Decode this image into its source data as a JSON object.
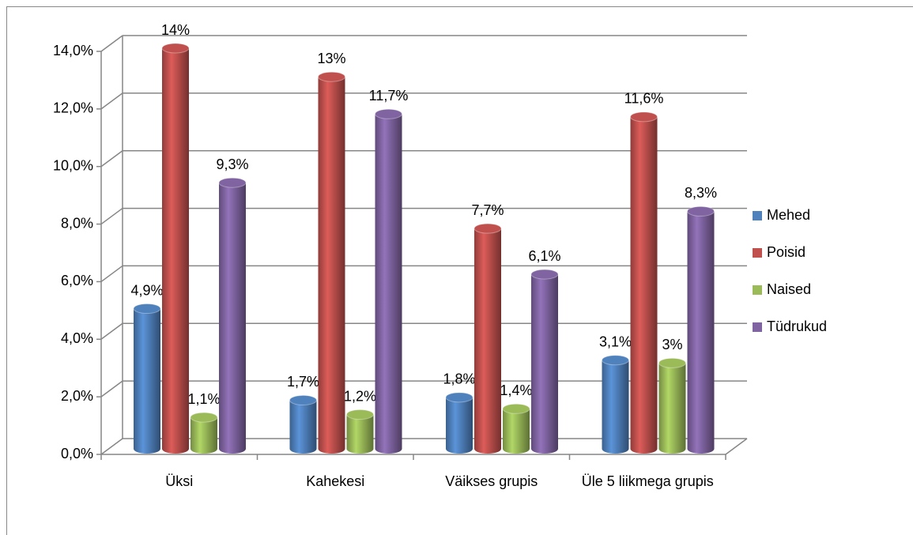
{
  "chart_data": {
    "type": "bar3d",
    "categories": [
      "Üksi",
      "Kahekesi",
      "Väikses grupis",
      "Üle 5 liikmega grupis"
    ],
    "series": [
      {
        "name": "Mehed",
        "color": "#4f81bd",
        "values": [
          4.9,
          1.7,
          1.8,
          3.1
        ],
        "value_labels": [
          "4,9%",
          "1,7%",
          "1,8%",
          "3,1%"
        ]
      },
      {
        "name": "Poisid",
        "color": "#c0504d",
        "values": [
          14,
          13,
          7.7,
          11.6
        ],
        "value_labels": [
          "14%",
          "13%",
          "7,7%",
          "11,6%"
        ]
      },
      {
        "name": "Naised",
        "color": "#9bbb59",
        "values": [
          1.1,
          1.2,
          1.4,
          3
        ],
        "value_labels": [
          "1,1%",
          "1,2%",
          "1,4%",
          "3%"
        ]
      },
      {
        "name": "Tüdrukud",
        "color": "#8064a2",
        "values": [
          9.3,
          11.7,
          6.1,
          8.3
        ],
        "value_labels": [
          "9,3%",
          "11,7%",
          "6,1%",
          "8,3%"
        ]
      }
    ],
    "ylim": [
      0,
      14
    ],
    "yticks": [
      {
        "value": 0,
        "label": "0,0%"
      },
      {
        "value": 2,
        "label": "2,0%"
      },
      {
        "value": 4,
        "label": "4,0%"
      },
      {
        "value": 6,
        "label": "6,0%"
      },
      {
        "value": 8,
        "label": "8,0%"
      },
      {
        "value": 10,
        "label": "10,0%"
      },
      {
        "value": 12,
        "label": "12,0%"
      },
      {
        "value": 14,
        "label": "14,0%"
      }
    ],
    "grid": true,
    "legend": "right"
  }
}
